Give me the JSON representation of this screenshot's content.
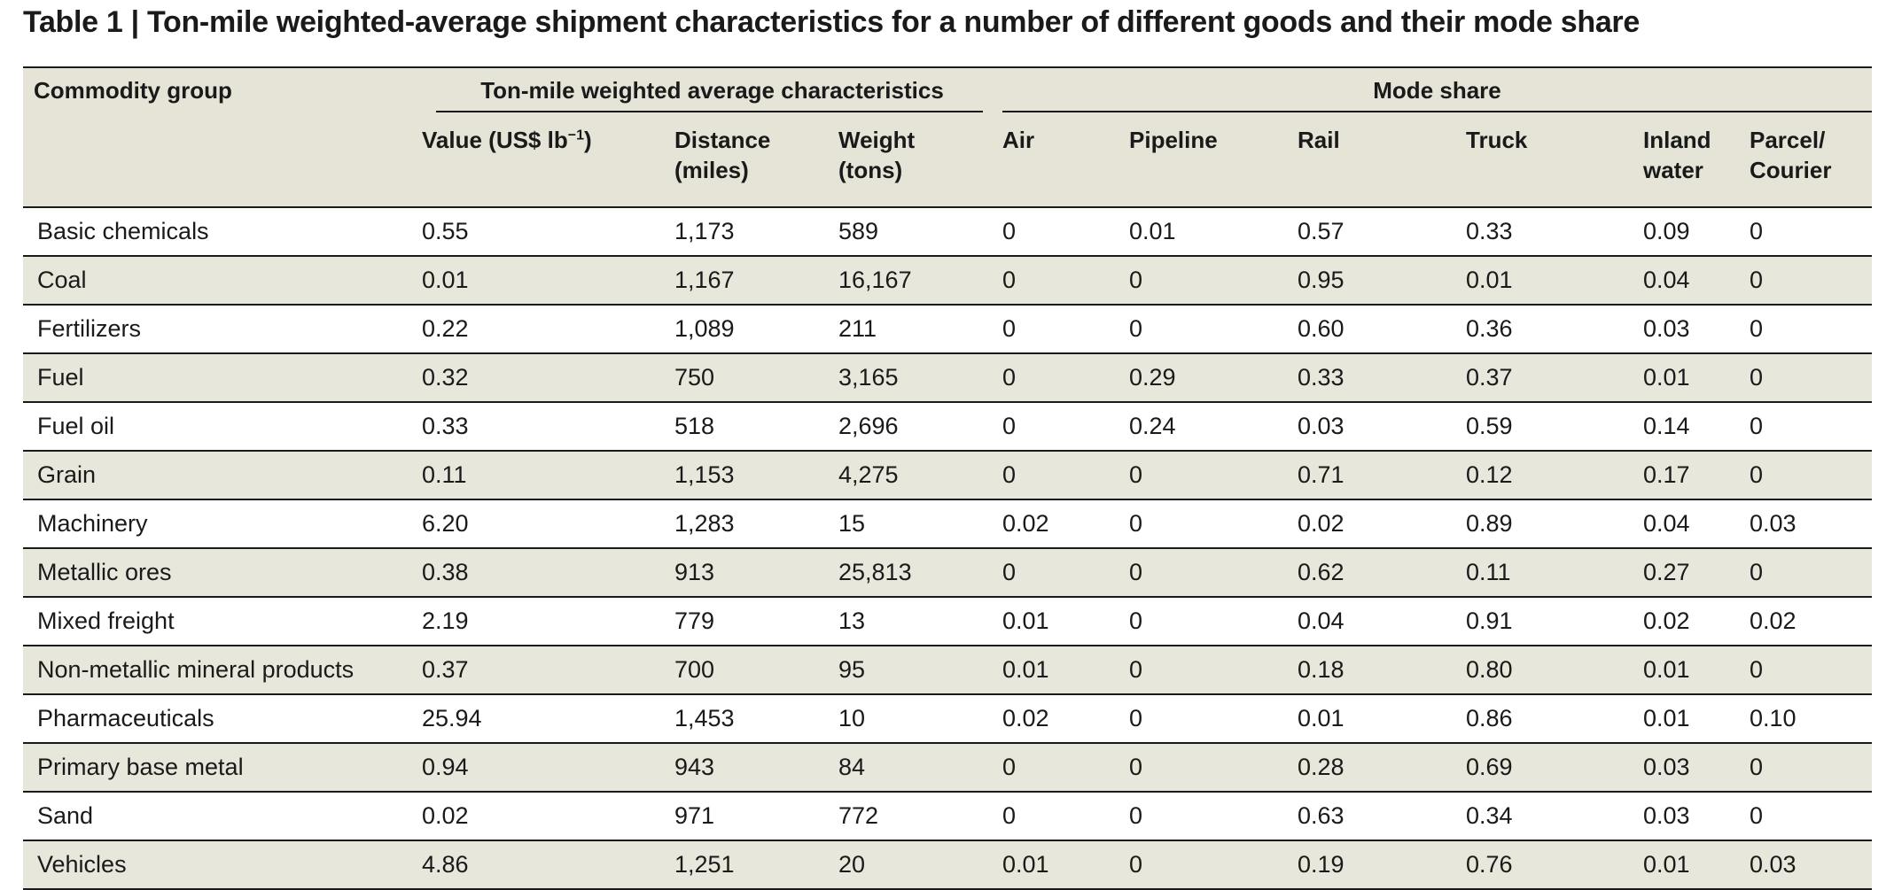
{
  "title": "Table 1 | Ton-mile weighted-average shipment characteristics for a number of different goods and their mode share",
  "header": {
    "commodity_group": "Commodity group",
    "ton_mile_group": "Ton-mile weighted average characteristics",
    "mode_share_group": "Mode share",
    "value_label": "Value (US$ lb",
    "value_exp": "−1",
    "value_close": ")",
    "distance_line1": "Distance",
    "distance_line2": "(miles)",
    "weight_line1": "Weight",
    "weight_line2": "(tons)",
    "air": "Air",
    "pipeline": "Pipeline",
    "rail": "Rail",
    "truck": "Truck",
    "inland_line1": "Inland",
    "inland_line2": "water",
    "parcel_line1": "Parcel/",
    "parcel_line2": "Courier"
  },
  "rows": [
    [
      "Basic chemicals",
      "0.55",
      "1,173",
      "589",
      "0",
      "0.01",
      "0.57",
      "0.33",
      "0.09",
      "0"
    ],
    [
      "Coal",
      "0.01",
      "1,167",
      "16,167",
      "0",
      "0",
      "0.95",
      "0.01",
      "0.04",
      "0"
    ],
    [
      "Fertilizers",
      "0.22",
      "1,089",
      "211",
      "0",
      "0",
      "0.60",
      "0.36",
      "0.03",
      "0"
    ],
    [
      "Fuel",
      "0.32",
      "750",
      "3,165",
      "0",
      "0.29",
      "0.33",
      "0.37",
      "0.01",
      "0"
    ],
    [
      "Fuel oil",
      "0.33",
      "518",
      "2,696",
      "0",
      "0.24",
      "0.03",
      "0.59",
      "0.14",
      "0"
    ],
    [
      "Grain",
      "0.11",
      "1,153",
      "4,275",
      "0",
      "0",
      "0.71",
      "0.12",
      "0.17",
      "0"
    ],
    [
      "Machinery",
      "6.20",
      "1,283",
      "15",
      "0.02",
      "0",
      "0.02",
      "0.89",
      "0.04",
      "0.03"
    ],
    [
      "Metallic ores",
      "0.38",
      "913",
      "25,813",
      "0",
      "0",
      "0.62",
      "0.11",
      "0.27",
      "0"
    ],
    [
      "Mixed freight",
      "2.19",
      "779",
      "13",
      "0.01",
      "0",
      "0.04",
      "0.91",
      "0.02",
      "0.02"
    ],
    [
      "Non-metallic mineral products",
      "0.37",
      "700",
      "95",
      "0.01",
      "0",
      "0.18",
      "0.80",
      "0.01",
      "0"
    ],
    [
      "Pharmaceuticals",
      "25.94",
      "1,453",
      "10",
      "0.02",
      "0",
      "0.01",
      "0.86",
      "0.01",
      "0.10"
    ],
    [
      "Primary base metal",
      "0.94",
      "943",
      "84",
      "0",
      "0",
      "0.28",
      "0.69",
      "0.03",
      "0"
    ],
    [
      "Sand",
      "0.02",
      "971",
      "772",
      "0",
      "0",
      "0.63",
      "0.34",
      "0.03",
      "0"
    ],
    [
      "Vehicles",
      "4.86",
      "1,251",
      "20",
      "0.01",
      "0",
      "0.19",
      "0.76",
      "0.01",
      "0.03"
    ]
  ]
}
